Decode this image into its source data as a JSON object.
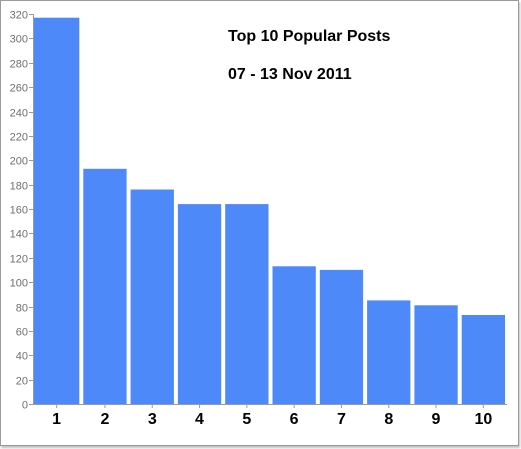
{
  "chart_data": {
    "type": "bar",
    "title": "Top 10 Popular Posts",
    "subtitle": "07 - 13 Nov 2011",
    "xlabel": "",
    "ylabel": "",
    "categories": [
      "1",
      "2",
      "3",
      "4",
      "5",
      "6",
      "7",
      "8",
      "9",
      "10"
    ],
    "values": [
      317,
      193,
      176,
      164,
      164,
      113,
      110,
      85,
      81,
      73
    ],
    "ylim": [
      0,
      320
    ],
    "yticks": [
      0,
      20,
      40,
      60,
      80,
      100,
      120,
      140,
      160,
      180,
      200,
      220,
      240,
      260,
      280,
      300,
      320
    ],
    "grid": false,
    "legend": "none",
    "bar_color": "#4d89f9"
  }
}
